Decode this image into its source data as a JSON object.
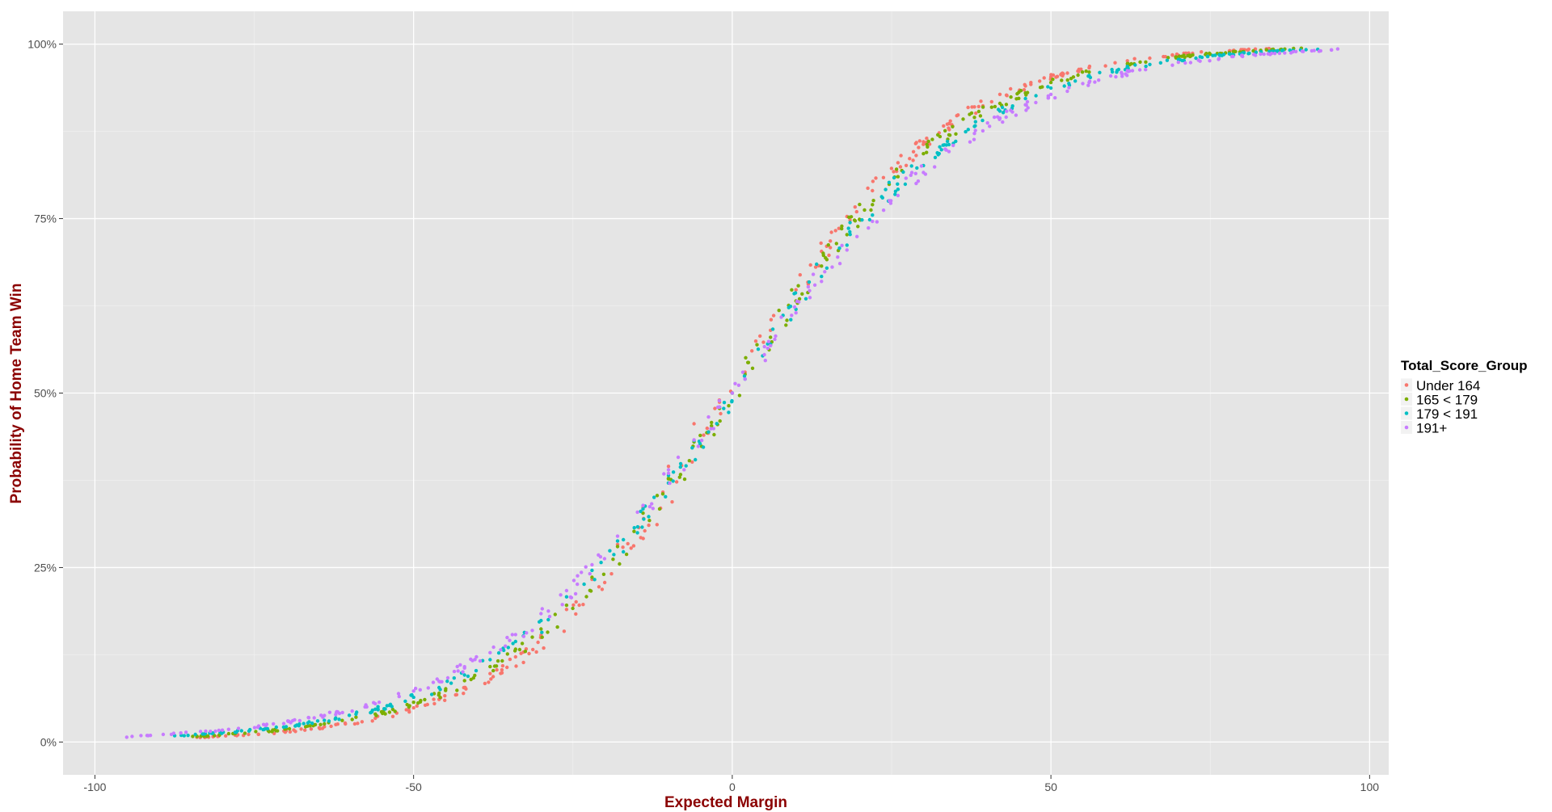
{
  "chart_data": {
    "type": "scatter",
    "title": "",
    "xlabel": "Expected Margin",
    "ylabel": "Probability of Home Team Win",
    "xlim": [
      -105,
      103
    ],
    "ylim": [
      -0.047,
      1.047
    ],
    "x_ticks": [
      -100,
      -50,
      0,
      50,
      100
    ],
    "x_tick_labels": [
      "-100",
      "-50",
      "0",
      "50",
      "100"
    ],
    "y_ticks": [
      0,
      0.25,
      0.5,
      0.75,
      1.0
    ],
    "y_tick_labels": [
      "0%",
      "25%",
      "50%",
      "75%",
      "100%"
    ],
    "grid": true,
    "panel_background": "#e5e5e5",
    "grid_color": "#ffffff",
    "legend_position": "right",
    "legend_title": "Total_Score_Group",
    "series": [
      {
        "name": "Under 164",
        "color": "#f8766d",
        "x_range": [
          -85,
          85
        ],
        "logistic_scale": 16.7,
        "points": [
          [
            -84,
            0.007
          ],
          [
            -78,
            0.01
          ],
          [
            -70,
            0.016
          ],
          [
            -64,
            0.022
          ],
          [
            -56,
            0.034
          ],
          [
            -50,
            0.049
          ],
          [
            -46,
            0.061
          ],
          [
            -42,
            0.078
          ],
          [
            -38,
            0.098
          ],
          [
            -34,
            0.122
          ],
          [
            -30,
            0.153
          ],
          [
            -26,
            0.19
          ],
          [
            -22,
            0.233
          ],
          [
            -18,
            0.283
          ],
          [
            -14,
            0.336
          ],
          [
            -10,
            0.395
          ],
          [
            -6,
            0.456
          ],
          [
            -2,
            0.487
          ],
          [
            0,
            0.5
          ],
          [
            2,
            0.53
          ],
          [
            6,
            0.59
          ],
          [
            10,
            0.648
          ],
          [
            14,
            0.703
          ],
          [
            18,
            0.753
          ],
          [
            22,
            0.79
          ],
          [
            26,
            0.83
          ],
          [
            30,
            0.86
          ],
          [
            34,
            0.886
          ],
          [
            38,
            0.91
          ],
          [
            42,
            0.928
          ],
          [
            46,
            0.94
          ],
          [
            50,
            0.953
          ],
          [
            56,
            0.966
          ],
          [
            62,
            0.976
          ],
          [
            70,
            0.984
          ],
          [
            78,
            0.99
          ],
          [
            84,
            0.993
          ]
        ]
      },
      {
        "name": "165 < 179",
        "color": "#7cae00",
        "x_range": [
          -85,
          90
        ],
        "logistic_scale": 17.6,
        "points": [
          [
            -84,
            0.008
          ],
          [
            -78,
            0.012
          ],
          [
            -70,
            0.019
          ],
          [
            -64,
            0.026
          ],
          [
            -56,
            0.04
          ],
          [
            -50,
            0.057
          ],
          [
            -46,
            0.07
          ],
          [
            -42,
            0.088
          ],
          [
            -38,
            0.108
          ],
          [
            -34,
            0.133
          ],
          [
            -30,
            0.162
          ],
          [
            -26,
            0.196
          ],
          [
            -22,
            0.236
          ],
          [
            -18,
            0.28
          ],
          [
            -14,
            0.328
          ],
          [
            -10,
            0.378
          ],
          [
            -6,
            0.43
          ],
          [
            -2,
            0.478
          ],
          [
            0,
            0.5
          ],
          [
            2,
            0.527
          ],
          [
            6,
            0.58
          ],
          [
            10,
            0.632
          ],
          [
            14,
            0.682
          ],
          [
            18,
            0.727
          ],
          [
            22,
            0.77
          ],
          [
            26,
            0.81
          ],
          [
            30,
            0.843
          ],
          [
            34,
            0.87
          ],
          [
            38,
            0.895
          ],
          [
            42,
            0.915
          ],
          [
            46,
            0.93
          ],
          [
            50,
            0.945
          ],
          [
            56,
            0.96
          ],
          [
            62,
            0.972
          ],
          [
            70,
            0.981
          ],
          [
            78,
            0.988
          ],
          [
            86,
            0.992
          ]
        ]
      },
      {
        "name": "179 < 191",
        "color": "#00bfc4",
        "x_range": [
          -88,
          92
        ],
        "logistic_scale": 18.6,
        "points": [
          [
            -86,
            0.009
          ],
          [
            -78,
            0.014
          ],
          [
            -70,
            0.022
          ],
          [
            -64,
            0.031
          ],
          [
            -56,
            0.047
          ],
          [
            -50,
            0.064
          ],
          [
            -46,
            0.078
          ],
          [
            -42,
            0.096
          ],
          [
            -38,
            0.118
          ],
          [
            -34,
            0.144
          ],
          [
            -30,
            0.174
          ],
          [
            -26,
            0.208
          ],
          [
            -22,
            0.246
          ],
          [
            -18,
            0.288
          ],
          [
            -14,
            0.334
          ],
          [
            -10,
            0.382
          ],
          [
            -6,
            0.432
          ],
          [
            -2,
            0.48
          ],
          [
            0,
            0.5
          ],
          [
            2,
            0.52
          ],
          [
            6,
            0.57
          ],
          [
            10,
            0.62
          ],
          [
            14,
            0.667
          ],
          [
            18,
            0.712
          ],
          [
            22,
            0.755
          ],
          [
            26,
            0.792
          ],
          [
            30,
            0.826
          ],
          [
            34,
            0.856
          ],
          [
            38,
            0.882
          ],
          [
            42,
            0.904
          ],
          [
            46,
            0.922
          ],
          [
            50,
            0.937
          ],
          [
            56,
            0.955
          ],
          [
            62,
            0.968
          ],
          [
            70,
            0.978
          ],
          [
            78,
            0.986
          ],
          [
            88,
            0.991
          ]
        ]
      },
      {
        "name": "191+",
        "color": "#c77cff",
        "x_range": [
          -95,
          95
        ],
        "logistic_scale": 19.8,
        "points": [
          [
            -95,
            0.007
          ],
          [
            -88,
            0.011
          ],
          [
            -80,
            0.017
          ],
          [
            -72,
            0.026
          ],
          [
            -64,
            0.038
          ],
          [
            -56,
            0.055
          ],
          [
            -50,
            0.073
          ],
          [
            -46,
            0.087
          ],
          [
            -42,
            0.106
          ],
          [
            -38,
            0.128
          ],
          [
            -34,
            0.154
          ],
          [
            -30,
            0.184
          ],
          [
            -26,
            0.217
          ],
          [
            -22,
            0.254
          ],
          [
            -18,
            0.295
          ],
          [
            -14,
            0.339
          ],
          [
            -10,
            0.385
          ],
          [
            -6,
            0.433
          ],
          [
            -2,
            0.48
          ],
          [
            0,
            0.5
          ],
          [
            2,
            0.52
          ],
          [
            6,
            0.568
          ],
          [
            10,
            0.615
          ],
          [
            14,
            0.66
          ],
          [
            18,
            0.705
          ],
          [
            22,
            0.746
          ],
          [
            26,
            0.783
          ],
          [
            30,
            0.816
          ],
          [
            34,
            0.846
          ],
          [
            38,
            0.872
          ],
          [
            42,
            0.894
          ],
          [
            46,
            0.913
          ],
          [
            50,
            0.928
          ],
          [
            56,
            0.945
          ],
          [
            62,
            0.962
          ],
          [
            70,
            0.974
          ],
          [
            80,
            0.984
          ],
          [
            88,
            0.989
          ],
          [
            95,
            0.993
          ]
        ]
      }
    ]
  }
}
